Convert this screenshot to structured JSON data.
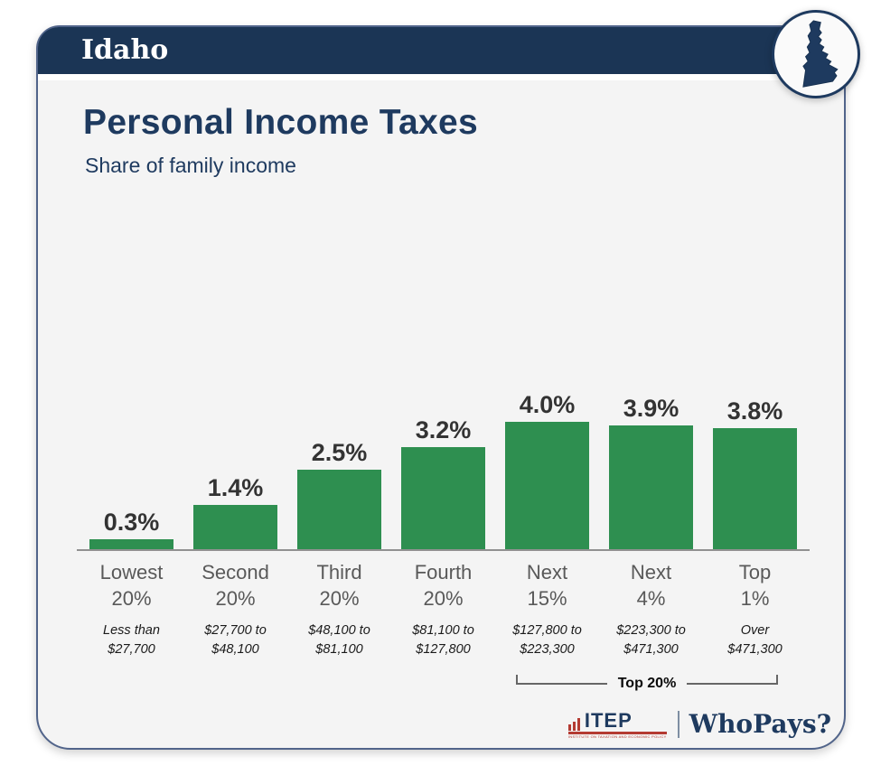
{
  "header": {
    "state": "Idaho"
  },
  "title": "Personal Income Taxes",
  "subtitle": "Share of family income",
  "colors": {
    "navy": "#1b3555",
    "text_navy": "#1e3a5f",
    "bar_green": "#2e8f50",
    "card_bg": "#f4f4f4",
    "axis_gray": "#919191",
    "tier_label_gray": "#595959",
    "value_label_dark": "#333333",
    "itep_red": "#b43a32"
  },
  "chart_data": {
    "type": "bar",
    "title": "Personal Income Taxes",
    "subtitle": "Share of family income",
    "ylabel": "Share of family income (%)",
    "ylim": [
      0,
      4.4
    ],
    "grid": false,
    "legend": "none",
    "categories": [
      "Lowest 20%",
      "Second 20%",
      "Third 20%",
      "Fourth 20%",
      "Next 15%",
      "Next 4%",
      "Top 1%"
    ],
    "values": [
      0.3,
      1.4,
      2.5,
      3.2,
      4.0,
      3.9,
      3.8
    ],
    "bars": [
      {
        "tier": [
          "Lowest",
          "20%"
        ],
        "range": [
          "Less than",
          "$27,700"
        ],
        "value": 0.3,
        "label": "0.3%"
      },
      {
        "tier": [
          "Second",
          "20%"
        ],
        "range": [
          "$27,700 to",
          "$48,100"
        ],
        "value": 1.4,
        "label": "1.4%"
      },
      {
        "tier": [
          "Third",
          "20%"
        ],
        "range": [
          "$48,100 to",
          "$81,100"
        ],
        "value": 2.5,
        "label": "2.5%"
      },
      {
        "tier": [
          "Fourth",
          "20%"
        ],
        "range": [
          "$81,100 to",
          "$127,800"
        ],
        "value": 3.2,
        "label": "3.2%"
      },
      {
        "tier": [
          "Next",
          "15%"
        ],
        "range": [
          "$127,800 to",
          "$223,300"
        ],
        "value": 4.0,
        "label": "4.0%"
      },
      {
        "tier": [
          "Next",
          "4%"
        ],
        "range": [
          "$223,300 to",
          "$471,300"
        ],
        "value": 3.9,
        "label": "3.9%"
      },
      {
        "tier": [
          "Top",
          "1%"
        ],
        "range": [
          "Over",
          "$471,300"
        ],
        "value": 3.8,
        "label": "3.8%"
      }
    ],
    "annotation": {
      "bracket_label": "Top 20%",
      "bracket_spans": [
        "Next 15%",
        "Next 4%",
        "Top 1%"
      ]
    }
  },
  "footer": {
    "itep_logo": "ITEP",
    "itep_caption": "INSTITUTE ON TAXATION AND ECONOMIC POLICY",
    "whopays_logo": "WhoPays?"
  }
}
